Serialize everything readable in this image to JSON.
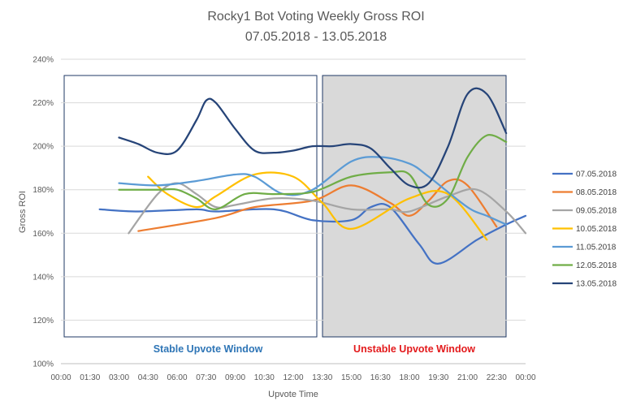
{
  "chart_data": {
    "type": "line",
    "title": "Rocky1 Bot Voting Weekly Gross ROI",
    "subtitle": "07.05.2018 - 13.05.2018",
    "xlabel": "Upvote Time",
    "ylabel": "Gross ROI",
    "xlim": [
      "00:00",
      "24:00"
    ],
    "ylim": [
      100,
      240
    ],
    "x_ticks": [
      "00:00",
      "01:30",
      "03:00",
      "04:30",
      "06:00",
      "07:30",
      "09:00",
      "10:30",
      "12:00",
      "13:30",
      "15:00",
      "16:30",
      "18:00",
      "19:30",
      "21:00",
      "22:30",
      "00:00"
    ],
    "y_ticks": [
      "100%",
      "120%",
      "140%",
      "160%",
      "180%",
      "200%",
      "220%",
      "240%"
    ],
    "grid": "horizontal",
    "legend_position": "right",
    "series": [
      {
        "name": "07.05.2018",
        "color": "#4472C4",
        "x": [
          "02:00",
          "04:00",
          "07:00",
          "08:00",
          "11:00",
          "13:00",
          "15:00",
          "16:00",
          "17:00",
          "18:30",
          "19:30",
          "21:30",
          "23:00",
          "24:00"
        ],
        "values": [
          171,
          170,
          171,
          170,
          171,
          166,
          166,
          172,
          172,
          155,
          146,
          157,
          164,
          168
        ]
      },
      {
        "name": "08.05.2018",
        "color": "#ED7D31",
        "x": [
          "04:00",
          "08:00",
          "10:00",
          "13:00",
          "15:00",
          "17:00",
          "18:00",
          "19:00",
          "20:00",
          "21:00",
          "22:30"
        ],
        "values": [
          161,
          167,
          172,
          175,
          182,
          174,
          168,
          175,
          184,
          182,
          163
        ]
      },
      {
        "name": "09.05.2018",
        "color": "#A5A5A5",
        "x": [
          "03:30",
          "05:00",
          "06:00",
          "07:00",
          "08:00",
          "09:00",
          "11:00",
          "13:00",
          "15:00",
          "17:00",
          "18:00",
          "20:00",
          "21:30",
          "23:00",
          "24:00"
        ],
        "values": [
          160,
          178,
          183,
          178,
          172,
          173,
          176,
          175,
          171,
          171,
          170,
          177,
          180,
          170,
          160
        ]
      },
      {
        "name": "10.05.2018",
        "color": "#FFC000",
        "x": [
          "04:30",
          "05:30",
          "07:00",
          "08:00",
          "10:00",
          "12:00",
          "13:30",
          "15:00",
          "18:00",
          "20:00",
          "22:00"
        ],
        "values": [
          186,
          178,
          172,
          177,
          187,
          186,
          174,
          162,
          176,
          178,
          157
        ]
      },
      {
        "name": "11.05.2018",
        "color": "#5B9BD5",
        "x": [
          "03:00",
          "05:00",
          "07:00",
          "09:00",
          "10:00",
          "11:30",
          "13:00",
          "15:00",
          "16:30",
          "18:00",
          "19:00",
          "21:00",
          "22:00",
          "23:00"
        ],
        "values": [
          183,
          182,
          184,
          187,
          186,
          178,
          180,
          193,
          195,
          192,
          186,
          172,
          168,
          164
        ]
      },
      {
        "name": "12.05.2018",
        "color": "#70AD47",
        "x": [
          "03:00",
          "05:00",
          "06:00",
          "07:00",
          "08:00",
          "09:30",
          "11:00",
          "13:00",
          "15:00",
          "17:00",
          "18:00",
          "19:00",
          "20:00",
          "21:00",
          "22:00",
          "23:00"
        ],
        "values": [
          180,
          180,
          180,
          176,
          171,
          178,
          178,
          179,
          186,
          188,
          187,
          173,
          176,
          195,
          205,
          202
        ]
      },
      {
        "name": "13.05.2018",
        "color": "#264478",
        "x": [
          "03:00",
          "04:00",
          "05:00",
          "06:00",
          "07:00",
          "07:30",
          "08:00",
          "09:00",
          "10:00",
          "11:00",
          "12:00",
          "13:00",
          "14:00",
          "15:00",
          "16:00",
          "17:00",
          "18:00",
          "19:00",
          "20:00",
          "21:00",
          "22:00",
          "23:00"
        ],
        "values": [
          204,
          201,
          197,
          198,
          212,
          221,
          220,
          208,
          198,
          197,
          198,
          200,
          200,
          201,
          199,
          190,
          182,
          183,
          200,
          224,
          224,
          206
        ]
      }
    ],
    "annotations": [
      {
        "label": "Stable Upvote Window",
        "color": "#2E75B6",
        "range": [
          "00:15",
          "13:10"
        ],
        "shaded": false
      },
      {
        "label": "Unstable Upvote Window",
        "color": "#E31A1C",
        "range": [
          "13:30",
          "23:15"
        ],
        "shaded": true
      }
    ]
  }
}
